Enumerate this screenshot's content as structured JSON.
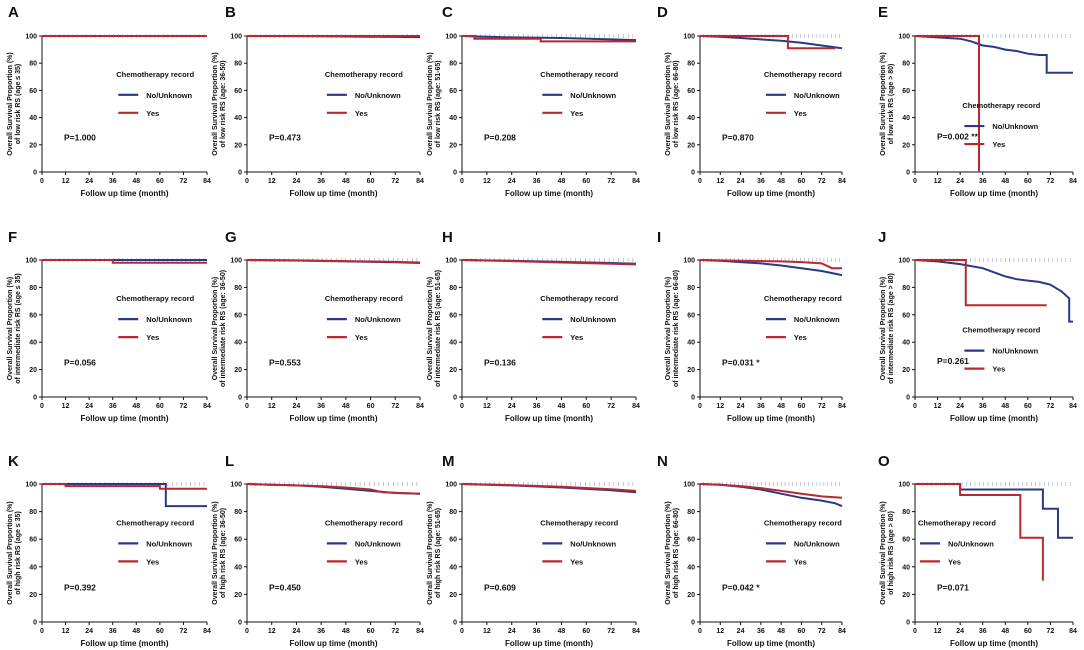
{
  "figure": {
    "colors": {
      "no_unknown": "#283a84",
      "yes": "#b8292f",
      "axis": "#111111"
    },
    "x_axis": {
      "label": "Follow up time (month)",
      "ticks": [
        0,
        12,
        24,
        36,
        48,
        60,
        72,
        84
      ],
      "range": [
        0,
        84
      ]
    },
    "y_axis": {
      "ticks": [
        0,
        20,
        40,
        60,
        80,
        100
      ],
      "range": [
        0,
        100
      ]
    },
    "legend": {
      "title": "Chemotherapy record",
      "no_unknown_label": "No/Unknown",
      "yes_label": "Yes"
    }
  },
  "chart_data": [
    {
      "letter": "A",
      "type": "line",
      "ylabel_line1": "Overall Survival Proportion (%)",
      "ylabel_line2": "of low risk RS (age ≤ 35)",
      "p_text": "P=1.000",
      "legend_pos": "middle",
      "xlabel": "Follow up time (month)",
      "series": [
        {
          "name": "No/Unknown",
          "x": [
            0,
            84
          ],
          "y": [
            100,
            100
          ]
        },
        {
          "name": "Yes",
          "x": [
            0,
            84
          ],
          "y": [
            100,
            100
          ]
        }
      ]
    },
    {
      "letter": "B",
      "type": "line",
      "ylabel_line1": "Overall Survival Proportion (%)",
      "ylabel_line2": "of low risk RS (age: 36-50)",
      "p_text": "P=0.473",
      "legend_pos": "middle",
      "xlabel": "Follow up time (month)",
      "series": [
        {
          "name": "No/Unknown",
          "x": [
            0,
            36,
            60,
            84
          ],
          "y": [
            100,
            99.8,
            99.5,
            99.2
          ]
        },
        {
          "name": "Yes",
          "x": [
            0,
            84
          ],
          "y": [
            100,
            100
          ]
        }
      ]
    },
    {
      "letter": "C",
      "type": "line",
      "ylabel_line1": "Overall Survival Proportion (%)",
      "ylabel_line2": "of low risk RS (age: 51-65)",
      "p_text": "P=0.208",
      "legend_pos": "middle",
      "xlabel": "Follow up time (month)",
      "series": [
        {
          "name": "No/Unknown",
          "x": [
            0,
            24,
            48,
            72,
            84
          ],
          "y": [
            100,
            99,
            98.5,
            97.5,
            97
          ]
        },
        {
          "name": "Yes",
          "x": [
            0,
            6,
            6,
            38,
            38,
            84
          ],
          "y": [
            100,
            100,
            98,
            98,
            96,
            96
          ]
        }
      ]
    },
    {
      "letter": "D",
      "type": "line",
      "ylabel_line1": "Overall Survival Proportion (%)",
      "ylabel_line2": "of low risk RS (age: 66-80)",
      "p_text": "P=0.870",
      "legend_pos": "middle",
      "xlabel": "Follow up time (month)",
      "series": [
        {
          "name": "No/Unknown",
          "x": [
            0,
            12,
            24,
            36,
            48,
            60,
            72,
            84
          ],
          "y": [
            100,
            99.5,
            98.5,
            97.5,
            96.5,
            95,
            93,
            91
          ]
        },
        {
          "name": "Yes",
          "x": [
            0,
            52,
            52,
            80
          ],
          "y": [
            100,
            100,
            91,
            91
          ]
        }
      ]
    },
    {
      "letter": "E",
      "type": "line",
      "ylabel_line1": "Overall Survival Proportion (%)",
      "ylabel_line2": "of low risk RS (age > 80)",
      "p_text": "P=0.002 **",
      "legend_pos": "bottom",
      "xlabel": "Follow up time (month)",
      "series": [
        {
          "name": "No/Unknown",
          "x": [
            0,
            12,
            24,
            30,
            36,
            42,
            48,
            54,
            60,
            66,
            70,
            70,
            76,
            84
          ],
          "y": [
            100,
            99,
            98,
            96,
            93,
            92,
            90,
            89,
            87,
            86,
            86,
            73,
            73,
            73
          ]
        },
        {
          "name": "Yes",
          "x": [
            0,
            34,
            34
          ],
          "y": [
            100,
            100,
            0
          ]
        }
      ]
    },
    {
      "letter": "F",
      "type": "line",
      "ylabel_line1": "Overall Survival Proportion (%)",
      "ylabel_line2": "of intermediate risk RS (age ≤ 35)",
      "p_text": "P=0.056",
      "legend_pos": "middle",
      "xlabel": "Follow up time (month)",
      "series": [
        {
          "name": "No/Unknown",
          "x": [
            0,
            84
          ],
          "y": [
            100,
            100
          ]
        },
        {
          "name": "Yes",
          "x": [
            0,
            36,
            36,
            84
          ],
          "y": [
            100,
            100,
            98,
            98
          ]
        }
      ]
    },
    {
      "letter": "G",
      "type": "line",
      "ylabel_line1": "Overall Survival Proportion (%)",
      "ylabel_line2": "of intermediate risk RS (age: 36-50)",
      "p_text": "P=0.553",
      "legend_pos": "middle",
      "xlabel": "Follow up time (month)",
      "series": [
        {
          "name": "No/Unknown",
          "x": [
            0,
            24,
            48,
            72,
            84
          ],
          "y": [
            100,
            99.6,
            99,
            98.3,
            97.8
          ]
        },
        {
          "name": "Yes",
          "x": [
            0,
            24,
            48,
            72,
            84
          ],
          "y": [
            100,
            99.7,
            99.2,
            98.6,
            98.2
          ]
        }
      ]
    },
    {
      "letter": "H",
      "type": "line",
      "ylabel_line1": "Overall Survival Proportion (%)",
      "ylabel_line2": "of intermediate risk RS (age: 51-65)",
      "p_text": "P=0.136",
      "legend_pos": "middle",
      "xlabel": "Follow up time (month)",
      "series": [
        {
          "name": "No/Unknown",
          "x": [
            0,
            24,
            48,
            72,
            84
          ],
          "y": [
            100,
            99.4,
            98.6,
            97.8,
            97.3
          ]
        },
        {
          "name": "Yes",
          "x": [
            0,
            24,
            48,
            72,
            84
          ],
          "y": [
            100,
            99.2,
            98.2,
            97.3,
            96.8
          ]
        }
      ]
    },
    {
      "letter": "I",
      "type": "line",
      "ylabel_line1": "Overall Survival Proportion (%)",
      "ylabel_line2": "of intermediate risk RS (age: 66-80)",
      "p_text": "P=0.031 *",
      "legend_pos": "middle",
      "xlabel": "Follow up time (month)",
      "series": [
        {
          "name": "No/Unknown",
          "x": [
            0,
            12,
            24,
            36,
            48,
            60,
            72,
            84
          ],
          "y": [
            100,
            99.5,
            98.5,
            97.5,
            96,
            94,
            92,
            89
          ]
        },
        {
          "name": "Yes",
          "x": [
            0,
            24,
            48,
            60,
            72,
            78,
            84
          ],
          "y": [
            100,
            99.5,
            99,
            98.5,
            97.5,
            94,
            94
          ]
        }
      ]
    },
    {
      "letter": "J",
      "type": "line",
      "ylabel_line1": "Overall Survival Proportion (%)",
      "ylabel_line2": "of intermediate risk RS (age > 80)",
      "p_text": "P=0.261",
      "legend_pos": "bottom",
      "xlabel": "Follow up time (month)",
      "series": [
        {
          "name": "No/Unknown",
          "x": [
            0,
            12,
            24,
            36,
            42,
            48,
            54,
            60,
            66,
            72,
            78,
            82,
            82,
            84
          ],
          "y": [
            100,
            99,
            97,
            94,
            91,
            88,
            86,
            85,
            84,
            82,
            77,
            72,
            55,
            55
          ]
        },
        {
          "name": "Yes",
          "x": [
            0,
            27,
            27,
            70
          ],
          "y": [
            100,
            100,
            67,
            67
          ]
        }
      ]
    },
    {
      "letter": "K",
      "type": "line",
      "ylabel_line1": "Overall Survival Proportion (%)",
      "ylabel_line2": "of high risk RS (age ≤ 35)",
      "p_text": "P=0.392",
      "legend_pos": "middle",
      "xlabel": "Follow up time (month)",
      "series": [
        {
          "name": "No/Unknown",
          "x": [
            0,
            63,
            63,
            84
          ],
          "y": [
            100,
            100,
            84,
            84
          ]
        },
        {
          "name": "Yes",
          "x": [
            0,
            12,
            12,
            60,
            60,
            84
          ],
          "y": [
            100,
            100,
            98.5,
            98.5,
            96.5,
            96.5
          ]
        }
      ]
    },
    {
      "letter": "L",
      "type": "line",
      "ylabel_line1": "Overall Survival Proportion (%)",
      "ylabel_line2": "of high risk RS (age: 36-50)",
      "p_text": "P=0.450",
      "legend_pos": "middle",
      "xlabel": "Follow up time (month)",
      "series": [
        {
          "name": "No/Unknown",
          "x": [
            0,
            12,
            24,
            36,
            48,
            60,
            72,
            84
          ],
          "y": [
            100,
            99.5,
            99,
            98,
            96.5,
            95,
            93.5,
            93
          ]
        },
        {
          "name": "Yes",
          "x": [
            0,
            12,
            24,
            36,
            48,
            60,
            66,
            84
          ],
          "y": [
            100,
            99.5,
            99,
            98.5,
            97.5,
            96,
            94,
            93
          ]
        }
      ]
    },
    {
      "letter": "M",
      "type": "line",
      "ylabel_line1": "Overall Survival Proportion (%)",
      "ylabel_line2": "of high risk RS (age: 51-65)",
      "p_text": "P=0.609",
      "legend_pos": "middle",
      "xlabel": "Follow up time (month)",
      "series": [
        {
          "name": "No/Unknown",
          "x": [
            0,
            24,
            48,
            72,
            84
          ],
          "y": [
            100,
            99,
            97.5,
            95.5,
            94
          ]
        },
        {
          "name": "Yes",
          "x": [
            0,
            24,
            48,
            72,
            84
          ],
          "y": [
            100,
            99.2,
            98,
            96.2,
            95
          ]
        }
      ]
    },
    {
      "letter": "N",
      "type": "line",
      "ylabel_line1": "Overall Survival Proportion (%)",
      "ylabel_line2": "of high risk RS (age: 66-80)",
      "p_text": "P=0.042 *",
      "legend_pos": "middle",
      "xlabel": "Follow up time (month)",
      "series": [
        {
          "name": "No/Unknown",
          "x": [
            0,
            12,
            24,
            36,
            48,
            60,
            72,
            80,
            84
          ],
          "y": [
            100,
            99.5,
            98,
            96,
            93,
            90,
            88,
            86,
            84
          ]
        },
        {
          "name": "Yes",
          "x": [
            0,
            12,
            24,
            36,
            48,
            60,
            72,
            84
          ],
          "y": [
            100,
            99.5,
            98.5,
            97,
            95,
            93,
            91,
            90
          ]
        }
      ]
    },
    {
      "letter": "O",
      "type": "line",
      "ylabel_line1": "Overall Survival Proportion (%)",
      "ylabel_line2": "of high risk RS (age > 80)",
      "p_text": "P=0.071",
      "legend_pos": "middle-left",
      "xlabel": "Follow up time (month)",
      "series": [
        {
          "name": "No/Unknown",
          "x": [
            0,
            12,
            24,
            24,
            48,
            68,
            68,
            76,
            76,
            84
          ],
          "y": [
            100,
            100,
            100,
            96,
            96,
            96,
            82,
            82,
            61,
            61
          ]
        },
        {
          "name": "Yes",
          "x": [
            0,
            24,
            24,
            56,
            56,
            68,
            68
          ],
          "y": [
            100,
            100,
            92,
            92,
            61,
            61,
            30
          ]
        }
      ]
    }
  ]
}
